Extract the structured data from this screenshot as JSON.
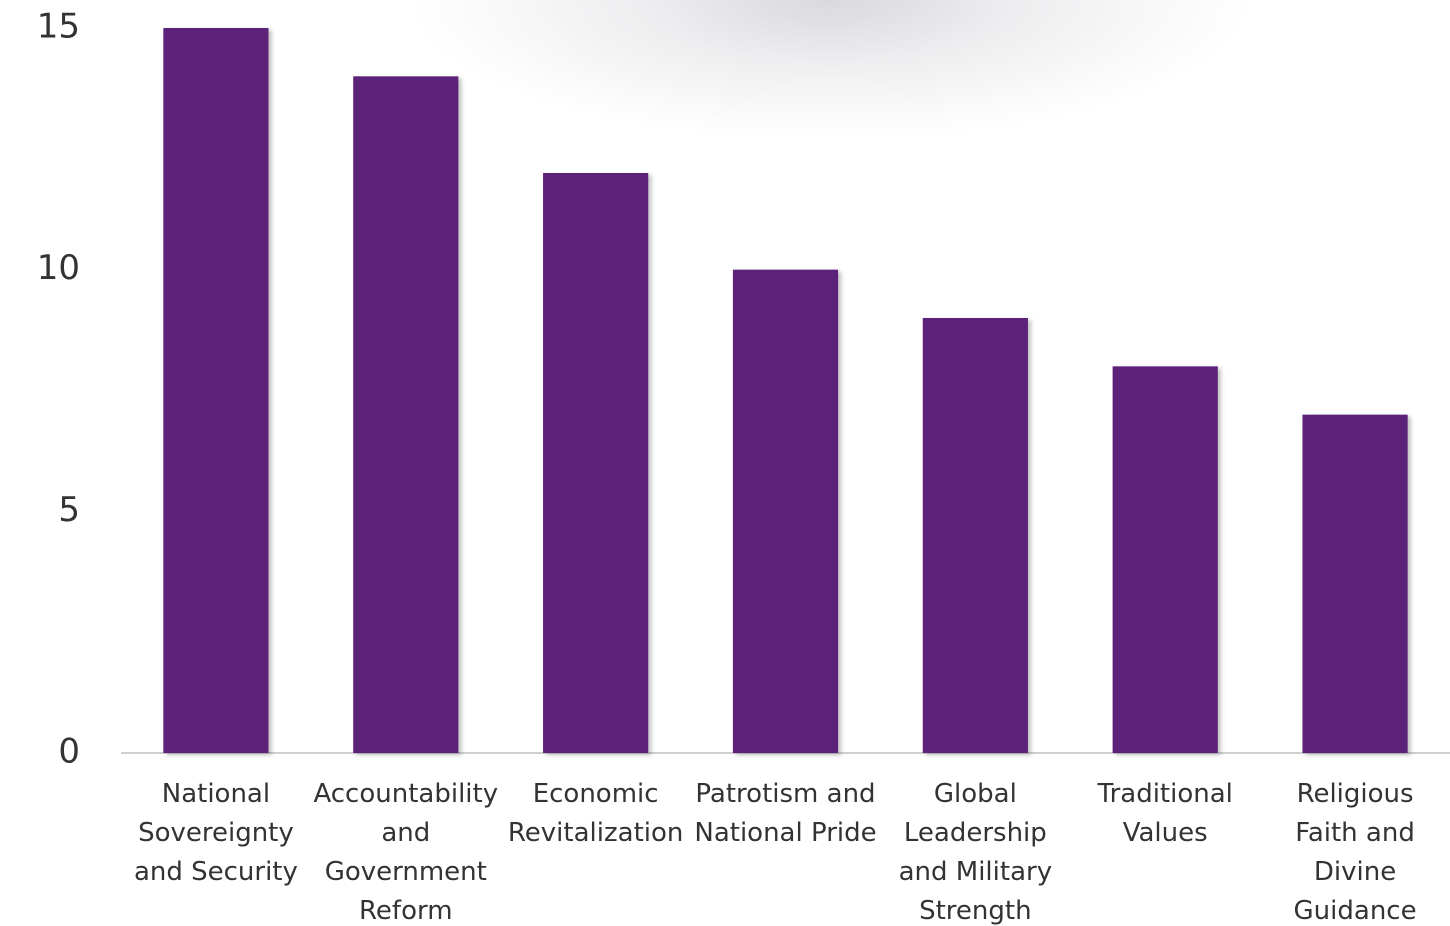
{
  "chart_data": {
    "type": "bar",
    "categories": [
      "National Sovereignty and Security",
      "Accountability and Government Reform",
      "Economic Revitalization",
      "Patrotism and National Pride",
      "Global Leadership and Military Strength",
      "Traditional Values",
      "Religious Faith and Divine Guidance"
    ],
    "values": [
      15,
      14,
      12,
      10,
      9,
      8,
      7
    ],
    "color": "#5c2079",
    "ylim": [
      0,
      15
    ],
    "yticks": [
      0,
      5,
      10,
      15
    ],
    "grid": false
  }
}
